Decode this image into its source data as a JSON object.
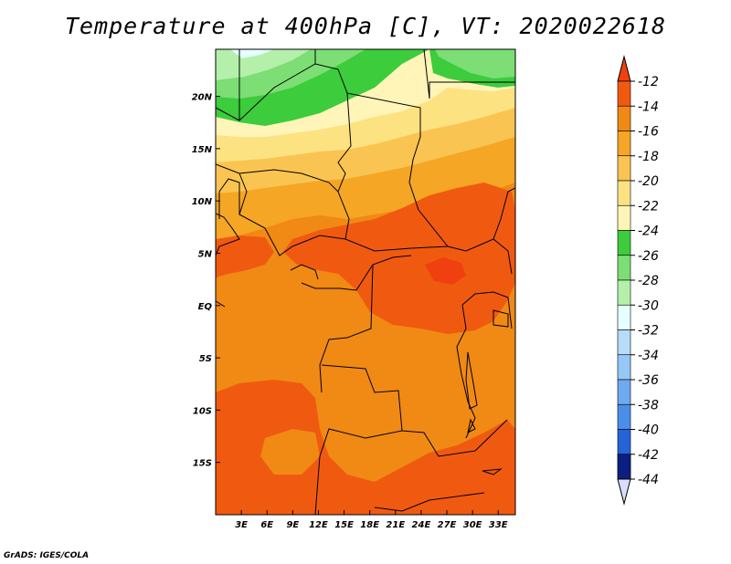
{
  "title": "Temperature at 400hPa [C], VT: 2020022618",
  "credit": "GrADS: IGES/COLA",
  "map": {
    "lon_range": [
      0,
      35
    ],
    "lat_range": [
      -20,
      24.5
    ],
    "lon_ticks": [
      {
        "value": 3,
        "label": "3E"
      },
      {
        "value": 6,
        "label": "6E"
      },
      {
        "value": 9,
        "label": "9E"
      },
      {
        "value": 12,
        "label": "12E"
      },
      {
        "value": 15,
        "label": "15E"
      },
      {
        "value": 18,
        "label": "18E"
      },
      {
        "value": 21,
        "label": "21E"
      },
      {
        "value": 24,
        "label": "24E"
      },
      {
        "value": 27,
        "label": "27E"
      },
      {
        "value": 30,
        "label": "30E"
      },
      {
        "value": 33,
        "label": "33E"
      }
    ],
    "lat_ticks": [
      {
        "value": 20,
        "label": "20N"
      },
      {
        "value": 15,
        "label": "15N"
      },
      {
        "value": 10,
        "label": "10N"
      },
      {
        "value": 5,
        "label": "5N"
      },
      {
        "value": 0,
        "label": "EQ"
      },
      {
        "value": -5,
        "label": "5S"
      },
      {
        "value": -10,
        "label": "10S"
      },
      {
        "value": -15,
        "label": "15S"
      }
    ]
  },
  "colorbar": {
    "levels": [
      "-12",
      "-14",
      "-16",
      "-18",
      "-20",
      "-22",
      "-24",
      "-26",
      "-28",
      "-30",
      "-32",
      "-34",
      "-36",
      "-38",
      "-40",
      "-42",
      "-44"
    ],
    "colors": [
      "#f05a10",
      "#f08a14",
      "#f5a624",
      "#fac452",
      "#fde282",
      "#fff5b8",
      "#3ccc3c",
      "#7cde74",
      "#b4f0aa",
      "#e6ffff",
      "#b6dcfa",
      "#96c8f5",
      "#6eaaf0",
      "#4a8ee8",
      "#2464d8",
      "#0f46b4",
      "#0c1e82"
    ],
    "top_arrow_color": "#f04010",
    "bottom_arrow_color": "#dcdcff"
  },
  "field_colors": {
    "band_22": "#fff5b8",
    "band_20": "#fde282",
    "band_18": "#fac452",
    "band_16": "#f5a624",
    "band_14": "#f08a14",
    "band_12": "#f05a10",
    "band_warm": "#f04010",
    "band_24": "#3ccc3c",
    "band_26": "#7cde74",
    "band_28": "#b4f0aa",
    "band_30": "#e6ffff"
  }
}
